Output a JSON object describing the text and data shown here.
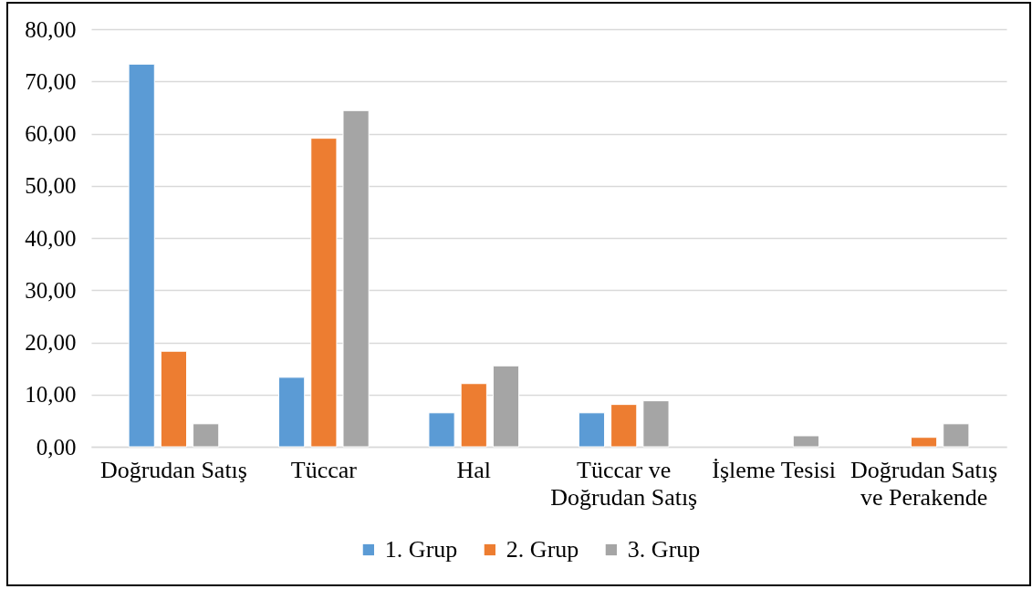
{
  "chart_data": {
    "type": "bar",
    "categories": [
      "Doğrudan Satış",
      "Tüccar",
      "Hal",
      "Tüccar ve Doğrudan Satış",
      "İşleme Tesisi",
      "Doğrudan Satış ve Perakende"
    ],
    "series": [
      {
        "name": "1. Grup",
        "color": "#5b9bd5",
        "values": [
          73.3,
          13.3,
          6.5,
          6.5,
          null,
          null
        ]
      },
      {
        "name": "2. Grup",
        "color": "#ed7d31",
        "values": [
          18.3,
          59.1,
          12.1,
          8.1,
          null,
          1.8
        ]
      },
      {
        "name": "3. Grup",
        "color": "#a5a5a5",
        "values": [
          4.4,
          64.4,
          15.5,
          8.8,
          2.1,
          4.4
        ]
      }
    ],
    "ylim": [
      0,
      80
    ],
    "yticks": [
      {
        "value": 0,
        "label": "0,00"
      },
      {
        "value": 10,
        "label": "10,00"
      },
      {
        "value": 20,
        "label": "20,00"
      },
      {
        "value": 30,
        "label": "30,00"
      },
      {
        "value": 40,
        "label": "40,00"
      },
      {
        "value": 50,
        "label": "50,00"
      },
      {
        "value": 60,
        "label": "60,00"
      },
      {
        "value": 70,
        "label": "70,00"
      },
      {
        "value": 80,
        "label": "80,00"
      }
    ],
    "grid": "y",
    "legend": "bottom"
  }
}
